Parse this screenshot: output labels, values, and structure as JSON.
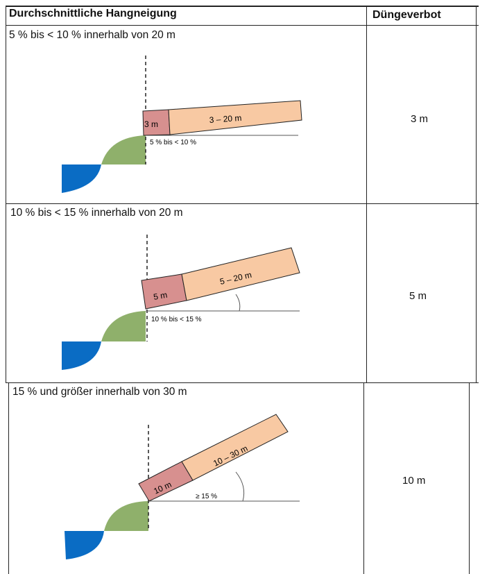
{
  "table": {
    "header": {
      "slope_label": "Durchschnittliche Hangneigung",
      "ban_label": "Düngeverbot"
    },
    "rows": [
      {
        "slope": "5 % bis < 10 % innerhalb von 20 m",
        "ban": "3 m",
        "diagram": {
          "buffer": "3 m",
          "strip": "3 – 20 m",
          "angle": "5 % bis < 10 %"
        }
      },
      {
        "slope": "10 % bis < 15 % innerhalb von 20 m",
        "ban": "5 m",
        "diagram": {
          "buffer": "5 m",
          "strip": "5 – 20 m",
          "angle": "10 % bis < 15 %"
        }
      },
      {
        "slope": "15 % und größer innerhalb von 30 m",
        "ban": "10 m",
        "diagram": {
          "buffer": "10 m",
          "strip": "10 – 30 m",
          "angle": "≥ 15 %"
        }
      }
    ]
  },
  "colors": {
    "water": "#0a6cc4",
    "bank": "#8fb06b",
    "buffer": "#d7908f",
    "strip": "#f8c9a3",
    "border": "#222222"
  }
}
